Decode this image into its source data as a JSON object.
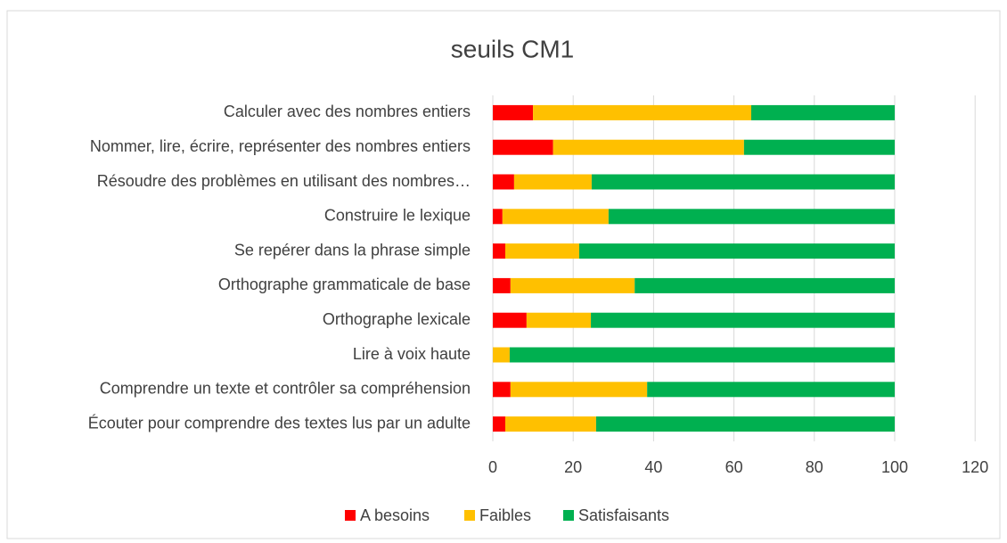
{
  "chart_data": {
    "type": "stacked_bar_horizontal",
    "title": "seuils CM1",
    "categories": [
      "Calculer avec des nombres entiers",
      "Nommer, lire, écrire, représenter des nombres entiers",
      "Résoudre des problèmes en utilisant des nombres…",
      "Construire le lexique",
      "Se repérer dans la phrase simple",
      "Orthographe grammaticale de base",
      "Orthographe lexicale",
      "Lire à voix haute",
      "Comprendre un texte et contrôler sa compréhension",
      "Écouter pour comprendre des textes lus par un adulte"
    ],
    "series": [
      {
        "name": "A besoins",
        "color": "#ff0000",
        "values": [
          10,
          15,
          5.3,
          2.4,
          3.1,
          4.4,
          8.4,
          0,
          4.4,
          3.1
        ]
      },
      {
        "name": "Faibles",
        "color": "#ffc000",
        "values": [
          54.3,
          47.5,
          19.3,
          26.4,
          18.4,
          30.9,
          16,
          4.2,
          34,
          22.6
        ]
      },
      {
        "name": "Satisfaisants",
        "color": "#00b050",
        "values": [
          35.7,
          37.5,
          75.4,
          71.2,
          78.5,
          64.7,
          75.6,
          95.8,
          61.6,
          74.3
        ]
      }
    ],
    "xlim": [
      0,
      120
    ],
    "xticks": [
      0,
      20,
      40,
      60,
      80,
      100,
      120
    ],
    "grid": true,
    "legend": "bottom"
  }
}
